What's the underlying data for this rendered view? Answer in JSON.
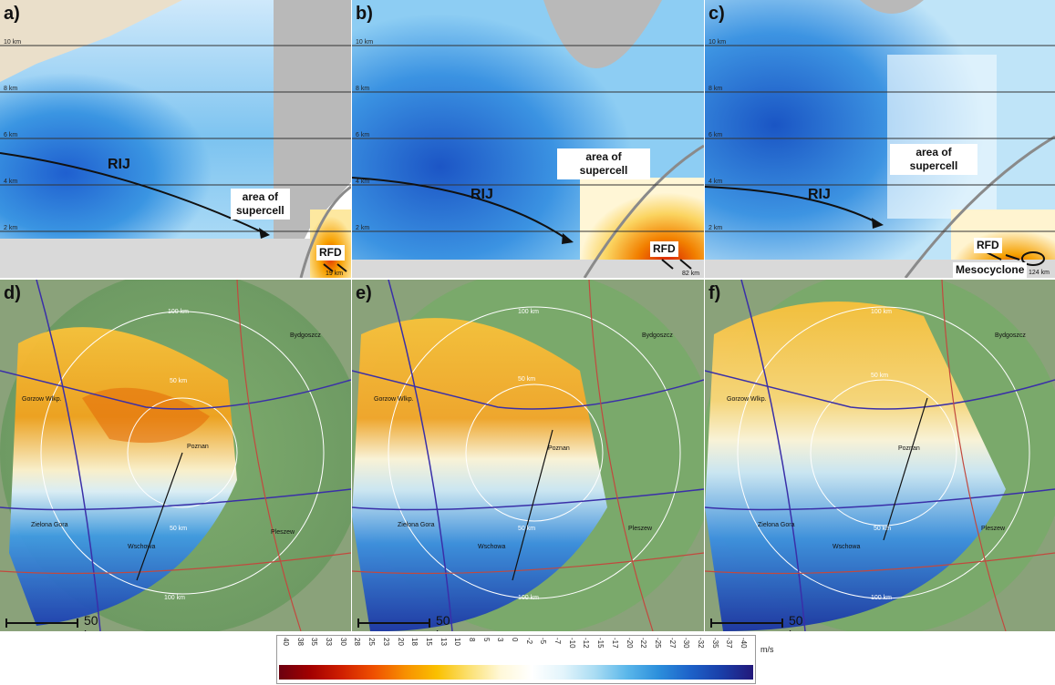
{
  "panels": {
    "a": {
      "label": "a)",
      "km": [
        "10 km",
        "8 km",
        "6 km",
        "4 km",
        "2 km"
      ],
      "rij": "RIJ",
      "supercell": "area of\nsupercell",
      "rfd": "RFD",
      "range": "19 km"
    },
    "b": {
      "label": "b)",
      "km": [
        "10 km",
        "8 km",
        "6 km",
        "4 km",
        "2 km"
      ],
      "rij": "RIJ",
      "supercell": "area of\nsupercell",
      "rfd": "RFD",
      "range": "82 km"
    },
    "c": {
      "label": "c)",
      "km": [
        "10 km",
        "8 km",
        "6 km",
        "4 km",
        "2 km"
      ],
      "rij": "RIJ",
      "supercell": "area of\nsupercell",
      "rfd": "RFD",
      "mesocyclone": "Mesocyclone",
      "range": "124 km"
    },
    "d": {
      "label": "d)",
      "scale": "50 km"
    },
    "e": {
      "label": "e)",
      "scale": "50 km"
    },
    "f": {
      "label": "f)",
      "scale": "50 km"
    }
  },
  "map_labels": {
    "cities": [
      "Gorzow Wlkp.",
      "Poznan",
      "Bydgoszcz",
      "Zielona Gora",
      "Wschowa",
      "Pleszew"
    ],
    "rings": [
      "100 km",
      "50 km",
      "50 km",
      "100 km"
    ]
  },
  "colorbar": {
    "ticks": [
      "40",
      "38",
      "35",
      "33",
      "30",
      "28",
      "25",
      "23",
      "20",
      "18",
      "15",
      "13",
      "10",
      "8",
      "5",
      "3",
      "0",
      "-2",
      "-5",
      "-7",
      "-10",
      "-12",
      "-15",
      "-17",
      "-20",
      "-22",
      "-25",
      "-27",
      "-30",
      "-32",
      "-35",
      "-37",
      "-40"
    ],
    "unit": "m/s",
    "colors": [
      "#6b0010",
      "#a30000",
      "#d02000",
      "#ef5000",
      "#f79000",
      "#fac000",
      "#fbe070",
      "#fff8d8",
      "#ffffff",
      "#e2f4fb",
      "#a9dcf3",
      "#5bb7ea",
      "#2c8fdc",
      "#1d62c9",
      "#1a3ea8",
      "#22187a"
    ]
  }
}
